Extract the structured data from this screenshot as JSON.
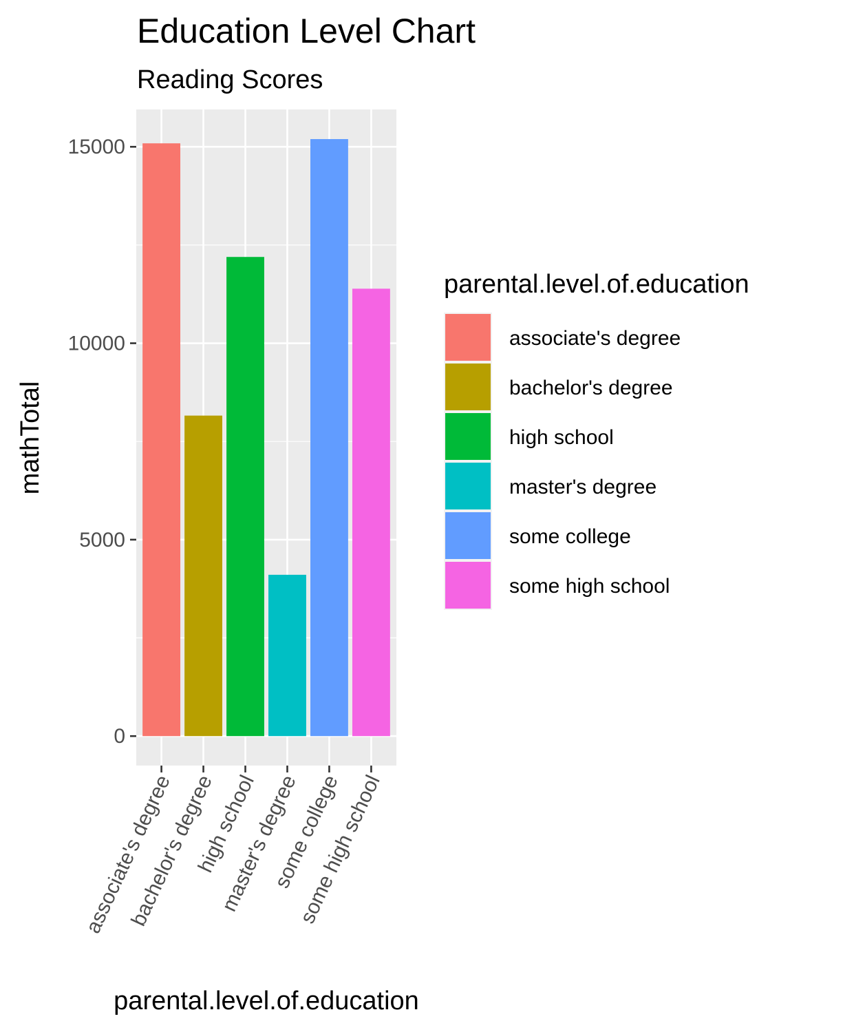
{
  "chart_data": {
    "type": "bar",
    "title": "Education Level Chart",
    "subtitle": "Reading Scores",
    "xlabel": "parental.level.of.education",
    "ylabel": "mathTotal",
    "categories": [
      "associate's degree",
      "bachelor's degree",
      "high school",
      "master's degree",
      "some college",
      "some high school"
    ],
    "values": [
      15088,
      8158,
      12196,
      4106,
      15196,
      11388
    ],
    "colors": [
      "#F8766D",
      "#B79F00",
      "#00BA38",
      "#00BFC4",
      "#619CFF",
      "#F564E3"
    ],
    "ylim": [
      -750,
      15950
    ],
    "yticks": [
      0,
      5000,
      10000,
      15000
    ],
    "ytick_labels": [
      "0",
      "5000",
      "10000",
      "15000"
    ],
    "grid": true,
    "panel_background": "#EBEBEB",
    "grid_color": "#FFFFFF",
    "legend": {
      "title": "parental.level.of.education",
      "placement": "right",
      "items": [
        "associate's degree",
        "bachelor's degree",
        "high school",
        "master's degree",
        "some college",
        "some high school"
      ]
    }
  }
}
